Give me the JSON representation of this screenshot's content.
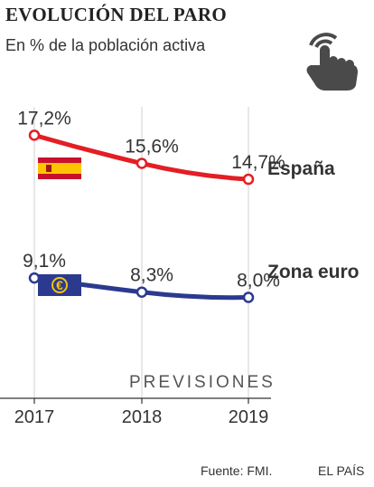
{
  "header": {
    "title": "EVOLUCIÓN DEL PARO",
    "subtitle": "En % de la población activa"
  },
  "icons": {
    "hand": "pointing-hand-icon"
  },
  "annotation": "PREVISIONES",
  "footer": {
    "source": "Fuente: FMI.",
    "brand": "EL PAÍS"
  },
  "colors": {
    "espana": "#e31e24",
    "zona_euro": "#2b3a8f",
    "grid": "#d0d0d0",
    "text": "#333333"
  },
  "chart_data": {
    "type": "line",
    "title": "EVOLUCIÓN DEL PARO",
    "subtitle": "En % de la población activa",
    "categories": [
      "2017",
      "2018",
      "2019"
    ],
    "series": [
      {
        "name": "España",
        "values": [
          17.2,
          15.6,
          14.7
        ],
        "labels": [
          "17,2%",
          "15,6%",
          "14,7%"
        ],
        "color": "#e31e24",
        "icon": "spain-flag-icon"
      },
      {
        "name": "Zona euro",
        "values": [
          9.1,
          8.3,
          8.0
        ],
        "labels": [
          "9,1%",
          "8,3%",
          "8,0%"
        ],
        "color": "#2b3a8f",
        "icon": "euro-flag-icon"
      }
    ],
    "grid": "vertical",
    "legend": "end-of-line labels"
  }
}
